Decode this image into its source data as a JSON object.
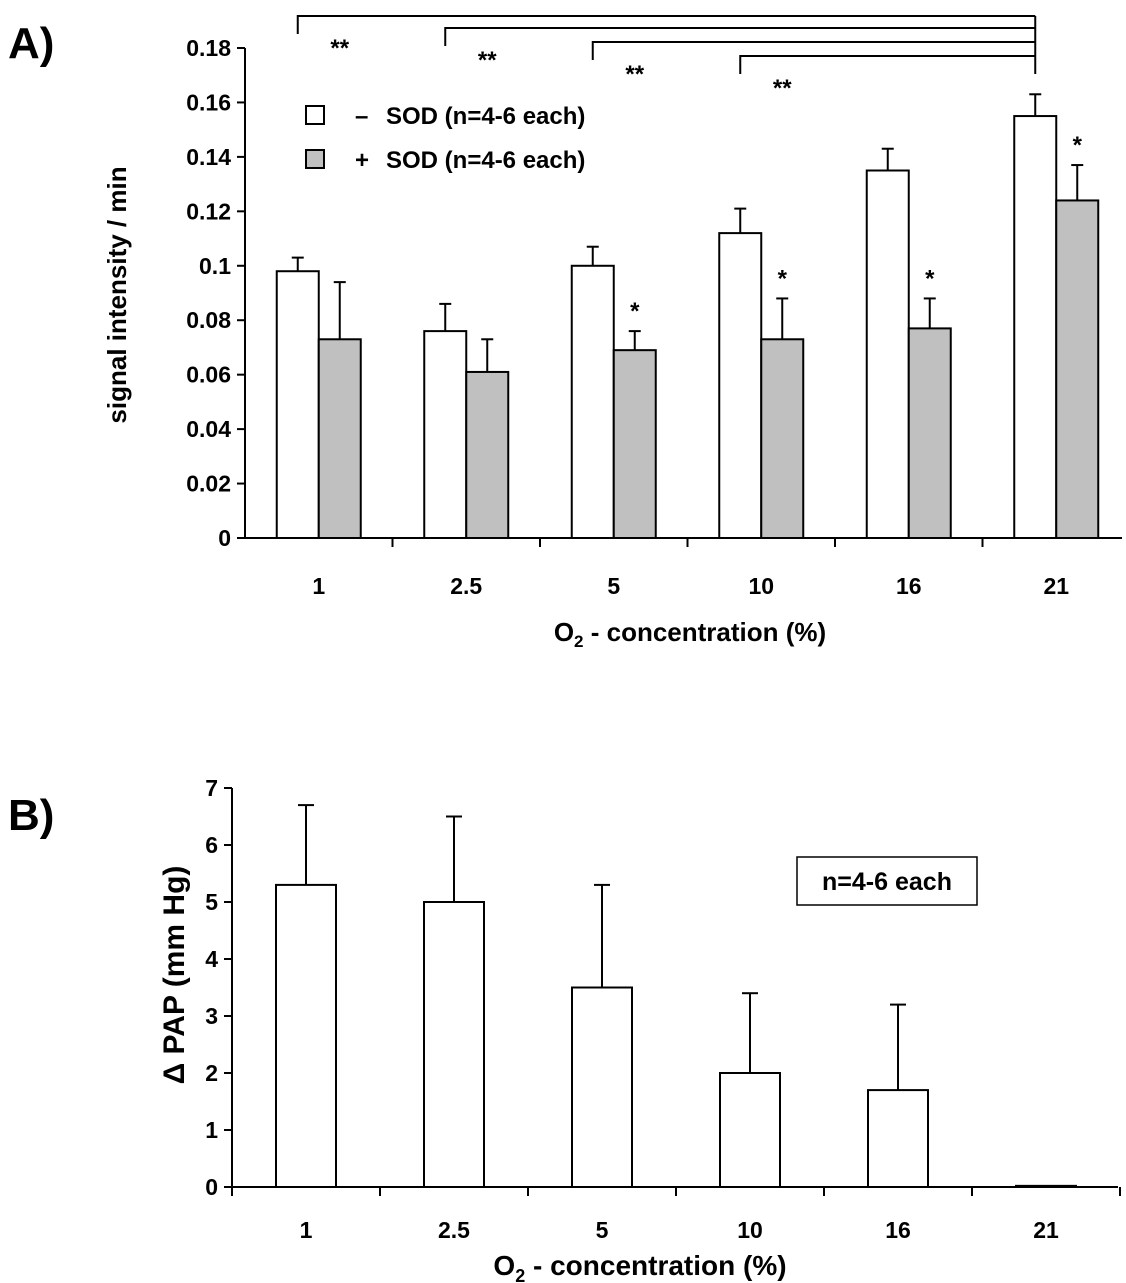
{
  "chart_data": [
    {
      "panel_label": "A)",
      "type": "bar",
      "categories": [
        "1",
        "2.5",
        "5",
        "10",
        "16",
        "21"
      ],
      "series": [
        {
          "name": "SOD (n=4-6 each)",
          "sign": "–",
          "color": "#ffffff",
          "values": [
            0.098,
            0.076,
            0.1,
            0.112,
            0.135,
            0.155
          ],
          "errors": [
            0.005,
            0.01,
            0.007,
            0.009,
            0.008,
            0.008
          ]
        },
        {
          "name": "SOD (n=4-6 each)",
          "sign": "+",
          "color": "#c0c0c0",
          "values": [
            0.073,
            0.061,
            0.069,
            0.073,
            0.077,
            0.124
          ],
          "errors": [
            0.021,
            0.012,
            0.007,
            0.015,
            0.011,
            0.013
          ]
        }
      ],
      "ylabel": "signal intensity / min",
      "xlabel_main": "O",
      "xlabel_sub": "2",
      "xlabel_rest": " - concentration (%)",
      "ylim": [
        0,
        0.18
      ],
      "yticks": [
        "0",
        "0.02",
        "0.04",
        "0.06",
        "0.08",
        "0.1",
        "0.12",
        "0.14",
        "0.16",
        "0.18"
      ],
      "significance_markers": [
        "",
        "",
        "*",
        "*",
        "*",
        "*"
      ],
      "brackets": [
        {
          "from_category": "1",
          "to_category": "21",
          "label": "**"
        },
        {
          "from_category": "2.5",
          "to_category": "21",
          "label": "**"
        },
        {
          "from_category": "5",
          "to_category": "21",
          "label": "**"
        },
        {
          "from_category": "10",
          "to_category": "21",
          "label": "**"
        }
      ],
      "legend_position": "top-left"
    },
    {
      "panel_label": "B)",
      "type": "bar",
      "categories": [
        "1",
        "2.5",
        "5",
        "10",
        "16",
        "21"
      ],
      "series": [
        {
          "name": "",
          "color": "#ffffff",
          "values": [
            5.3,
            5.0,
            3.5,
            2.0,
            1.7,
            0.02
          ],
          "errors": [
            1.4,
            1.5,
            1.8,
            1.4,
            1.5,
            0
          ]
        }
      ],
      "ylabel": "Δ PAP (mm Hg)",
      "xlabel_main": "O",
      "xlabel_sub": "2",
      "xlabel_rest": " - concentration (%)",
      "ylim": [
        0,
        7
      ],
      "yticks": [
        "0",
        "1",
        "2",
        "3",
        "4",
        "5",
        "6",
        "7"
      ],
      "annotation": "n=4-6 each",
      "legend_position": "none"
    }
  ]
}
